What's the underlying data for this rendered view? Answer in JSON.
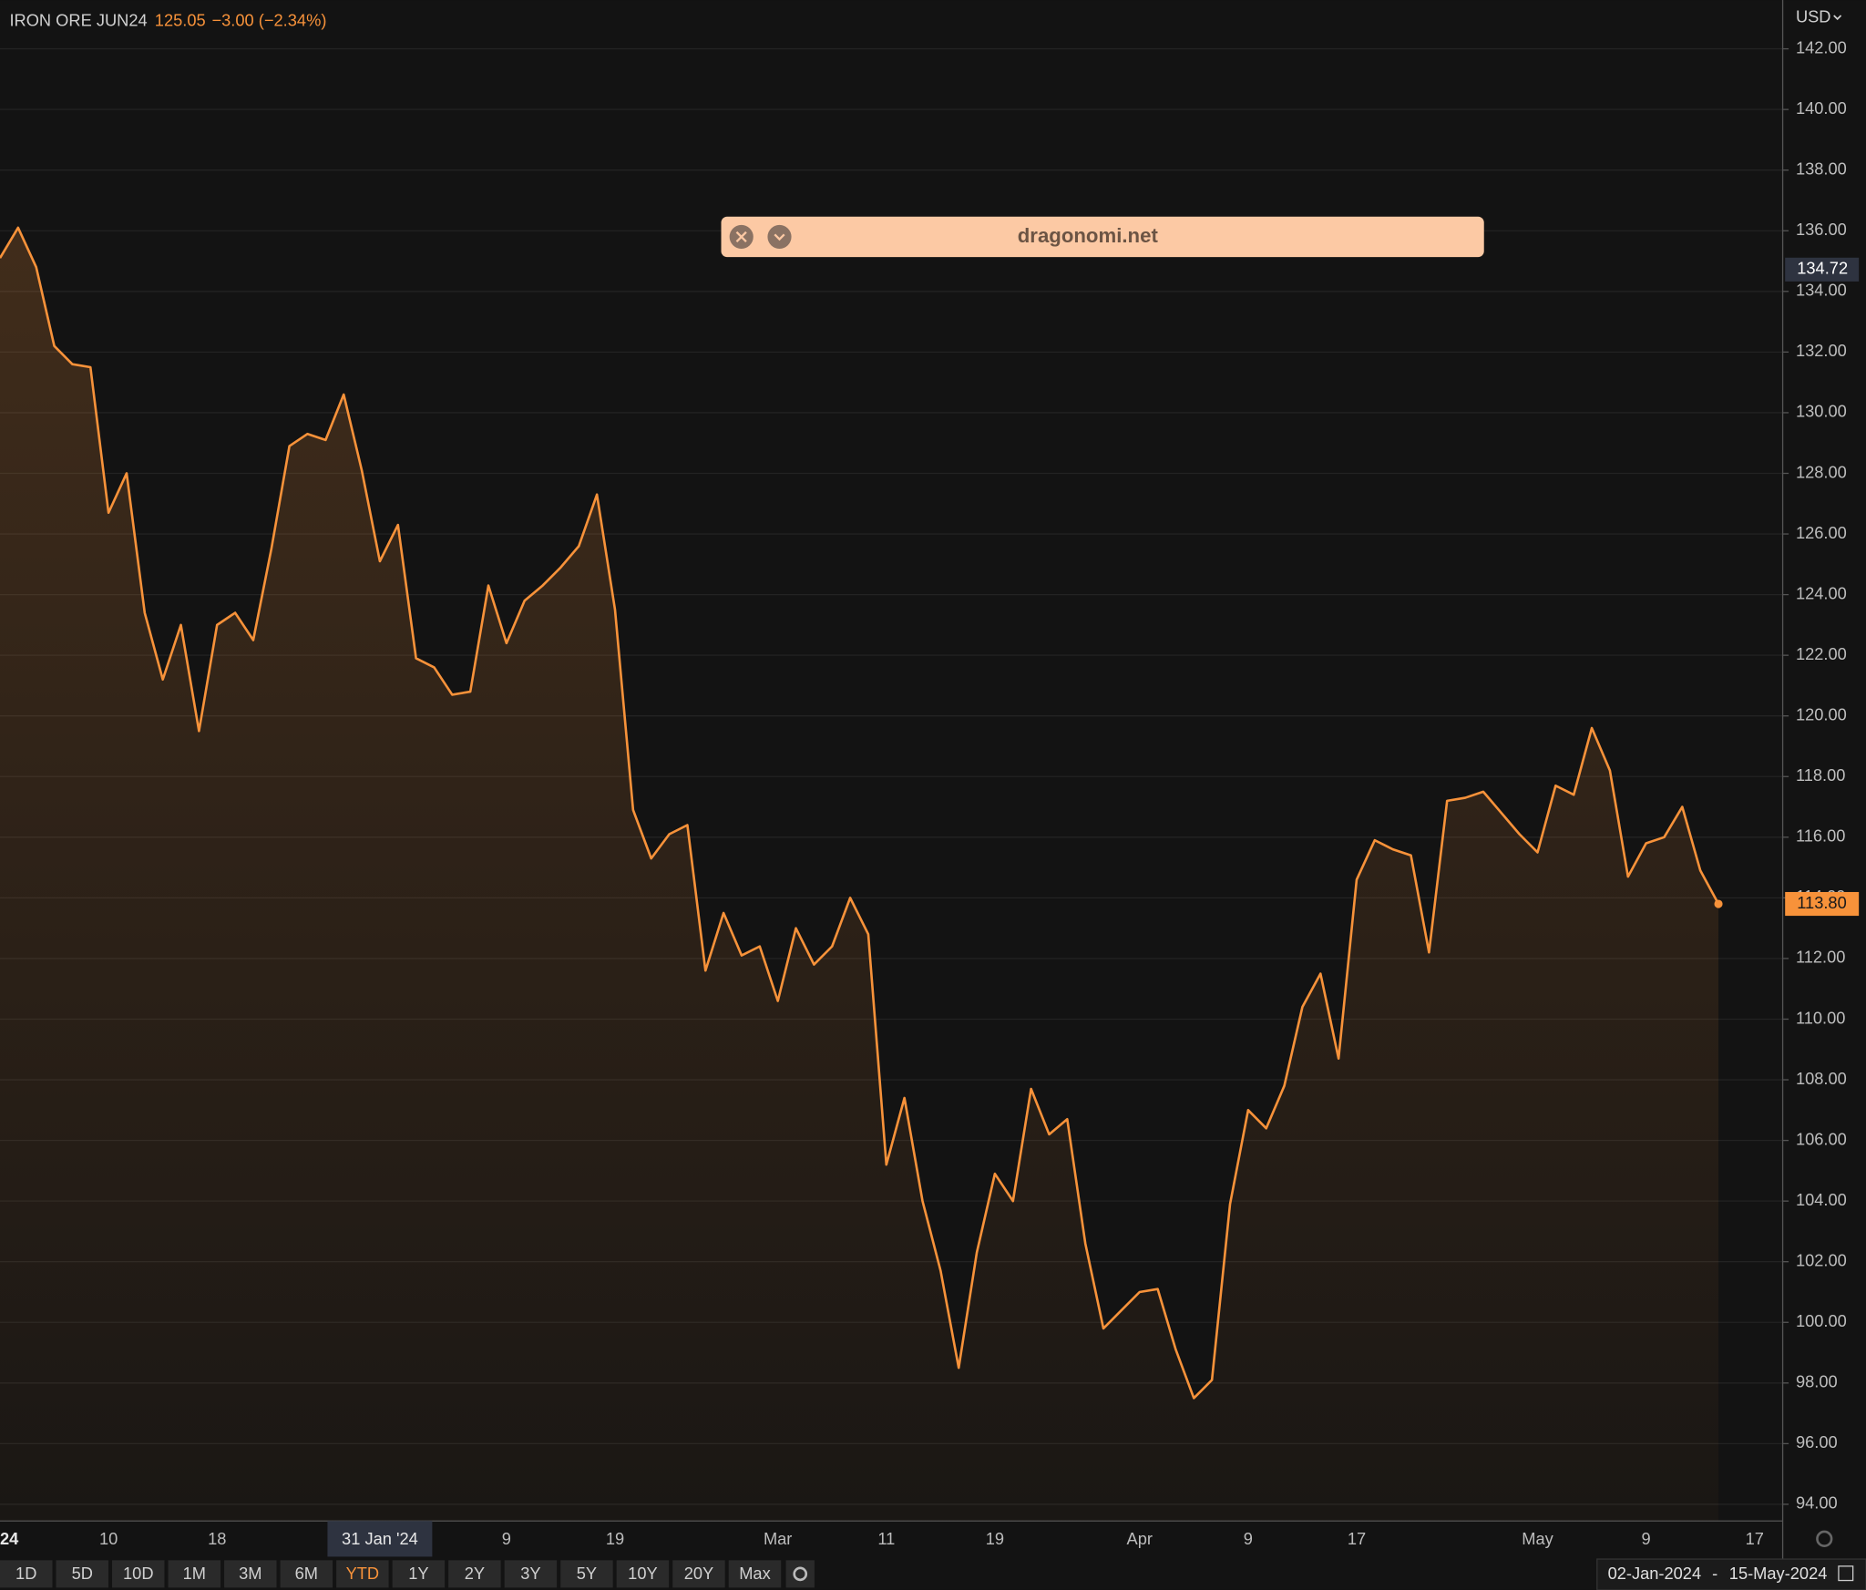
{
  "header": {
    "symbol": "IRON ORE JUN24",
    "price": "125.05",
    "change": "−3.00 (−2.34%)",
    "currency": "USD"
  },
  "banner": {
    "text": "dragonomi.net"
  },
  "range_buttons": {
    "items": [
      "1D",
      "5D",
      "10D",
      "1M",
      "3M",
      "6M",
      "YTD",
      "1Y",
      "2Y",
      "3Y",
      "5Y",
      "10Y",
      "20Y",
      "Max"
    ],
    "active_index": 6
  },
  "date_range": {
    "from": "02-Jan-2024",
    "separator": "-",
    "to": "15-May-2024"
  },
  "chart_data": {
    "type": "line",
    "color": "#f7923a",
    "grid": true,
    "categories": [
      "24",
      null,
      null,
      null,
      null,
      null,
      "10",
      null,
      null,
      null,
      null,
      null,
      "18",
      null,
      null,
      null,
      null,
      null,
      null,
      null,
      null,
      "31 Jan '24",
      null,
      null,
      null,
      null,
      null,
      null,
      "9",
      null,
      null,
      null,
      null,
      null,
      "19",
      null,
      null,
      null,
      null,
      null,
      null,
      null,
      null,
      "Mar",
      null,
      null,
      null,
      null,
      null,
      "11",
      null,
      null,
      null,
      null,
      null,
      "19",
      null,
      null,
      null,
      null,
      null,
      null,
      null,
      "Apr",
      null,
      null,
      null,
      null,
      null,
      "9",
      null,
      null,
      null,
      null,
      null,
      "17",
      null,
      null,
      null,
      null,
      null,
      null,
      null,
      null,
      null,
      "May",
      null,
      null,
      null,
      null,
      null,
      "9",
      null,
      null,
      null,
      null,
      null,
      "17"
    ],
    "values": [
      135.1,
      136.1,
      134.8,
      132.2,
      131.6,
      131.5,
      126.7,
      128.0,
      123.4,
      121.2,
      123.0,
      119.5,
      123.0,
      123.4,
      122.5,
      125.5,
      128.9,
      129.3,
      129.1,
      130.6,
      128.1,
      125.1,
      126.3,
      121.9,
      121.6,
      120.7,
      120.8,
      124.3,
      122.4,
      123.8,
      124.3,
      124.9,
      125.6,
      127.3,
      123.5,
      116.9,
      115.3,
      116.1,
      116.4,
      111.6,
      113.5,
      112.1,
      112.4,
      110.6,
      113.0,
      111.8,
      112.4,
      114.0,
      112.8,
      105.2,
      107.4,
      104.0,
      101.7,
      98.5,
      102.3,
      104.9,
      104.0,
      107.7,
      106.2,
      106.7,
      102.6,
      99.8,
      100.4,
      101.0,
      101.1,
      99.1,
      97.5,
      98.1,
      103.9,
      107.0,
      106.4,
      107.8,
      110.4,
      111.5,
      108.7,
      114.6,
      115.9,
      115.6,
      115.4,
      112.2,
      117.2,
      117.3,
      117.5,
      116.8,
      116.1,
      115.5,
      117.7,
      117.4,
      119.6,
      118.2,
      114.7,
      115.8,
      116.0,
      117.0,
      114.9,
      113.8,
      null,
      null
    ],
    "ylim": [
      93.45,
      143.61
    ],
    "yticks": [
      {
        "value": 94,
        "label": "94.00"
      },
      {
        "value": 96,
        "label": "96.00"
      },
      {
        "value": 98,
        "label": "98.00"
      },
      {
        "value": 100,
        "label": "100.00"
      },
      {
        "value": 102,
        "label": "102.00"
      },
      {
        "value": 104,
        "label": "104.00"
      },
      {
        "value": 106,
        "label": "106.00"
      },
      {
        "value": 108,
        "label": "108.00"
      },
      {
        "value": 110,
        "label": "110.00"
      },
      {
        "value": 112,
        "label": "112.00"
      },
      {
        "value": 114,
        "label": "114.00"
      },
      {
        "value": 116,
        "label": "116.00"
      },
      {
        "value": 118,
        "label": "118.00"
      },
      {
        "value": 120,
        "label": "120.00"
      },
      {
        "value": 122,
        "label": "122.00"
      },
      {
        "value": 124,
        "label": "124.00"
      },
      {
        "value": 126,
        "label": "126.00"
      },
      {
        "value": 128,
        "label": "128.00"
      },
      {
        "value": 130,
        "label": "130.00"
      },
      {
        "value": 132,
        "label": "132.00"
      },
      {
        "value": 134,
        "label": "134.00"
      },
      {
        "value": 136,
        "label": "136.00"
      },
      {
        "value": 138,
        "label": "138.00"
      },
      {
        "value": 140,
        "label": "140.00"
      },
      {
        "value": 142,
        "label": "142.00"
      }
    ],
    "crosshair": {
      "value": 134.72,
      "label": "134.72",
      "category_index": 21
    },
    "last_price": {
      "value": 113.8,
      "label": "113.80"
    }
  }
}
